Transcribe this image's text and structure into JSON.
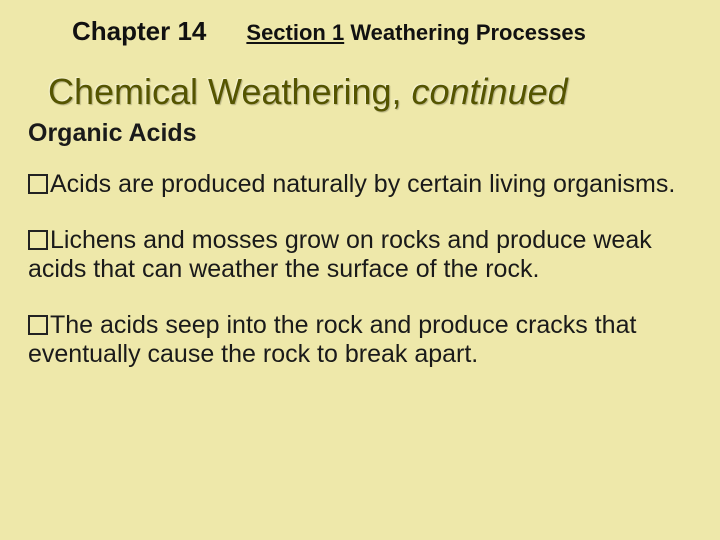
{
  "colors": {
    "background": "#eee8aa",
    "title_color": "#555500",
    "text_color": "#1a1a1a"
  },
  "typography": {
    "body_font": "Arial",
    "chapter_fontsize": 26,
    "section_fontsize": 22,
    "title_fontsize": 36,
    "subhead_fontsize": 25,
    "bullet_fontsize": 25
  },
  "header": {
    "chapter_label": "Chapter 14",
    "section_prefix": "Section 1",
    "section_rest": " Weathering Processes"
  },
  "title": {
    "main": "Chemical Weathering, ",
    "italic": "continued"
  },
  "subheading": "Organic Acids",
  "bullets": [
    "Acids are produced naturally by certain living organisms.",
    "Lichens and mosses grow on rocks and produce weak acids that can weather the surface of the rock.",
    "The acids seep into the rock and produce cracks that eventually cause the rock to break apart."
  ]
}
